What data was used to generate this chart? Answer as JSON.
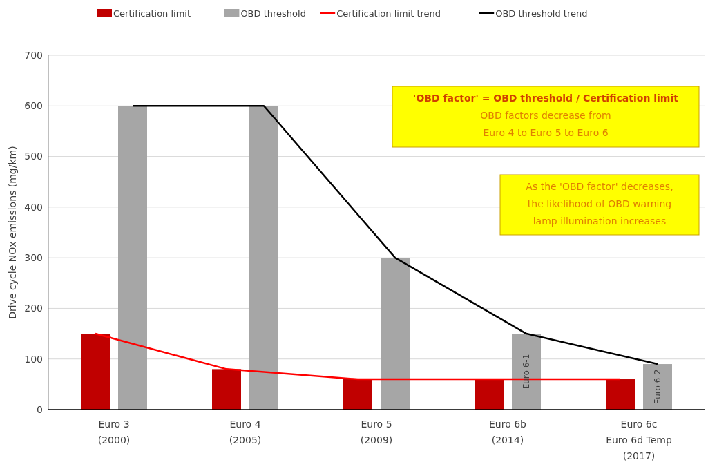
{
  "chart_data": {
    "type": "bar",
    "ylabel": "Drive cycle NOx emissions (mg/km)",
    "categories": [
      "Euro 3\n(2000)",
      "Euro 4\n(2005)",
      "Euro 5\n(2009)",
      "Euro 6b\n(2014)",
      "Euro 6c\nEuro 6d Temp\n(2017)"
    ],
    "series": [
      {
        "name": "Certification limit",
        "color": "#c00000",
        "values": [
          150,
          80,
          60,
          60,
          60
        ]
      },
      {
        "name": "OBD threshold",
        "color": "#a6a6a6",
        "values": [
          600,
          600,
          300,
          150,
          90
        ]
      },
      {
        "name": "Certification limit trend",
        "type": "line",
        "color": "#ff0000",
        "values": [
          150,
          80,
          60,
          60,
          60
        ]
      },
      {
        "name": "OBD threshold trend",
        "type": "line",
        "color": "#000000",
        "values": [
          600,
          600,
          300,
          150,
          90
        ]
      }
    ],
    "ylim": [
      0,
      700
    ],
    "yticks": [
      0,
      100,
      200,
      300,
      400,
      500,
      600,
      700
    ],
    "grid": "y",
    "legend": "top",
    "annotations": [
      "'OBD factor' = OBD threshold / Certification limit\nOBD factors decrease from\nEuro 4 to Euro 5 to Euro 6",
      "As the 'OBD factor' decreases,\nthe likelihood of OBD warning\nlamp illumination increases",
      "Euro 6-1",
      "Euro 6-2"
    ]
  }
}
